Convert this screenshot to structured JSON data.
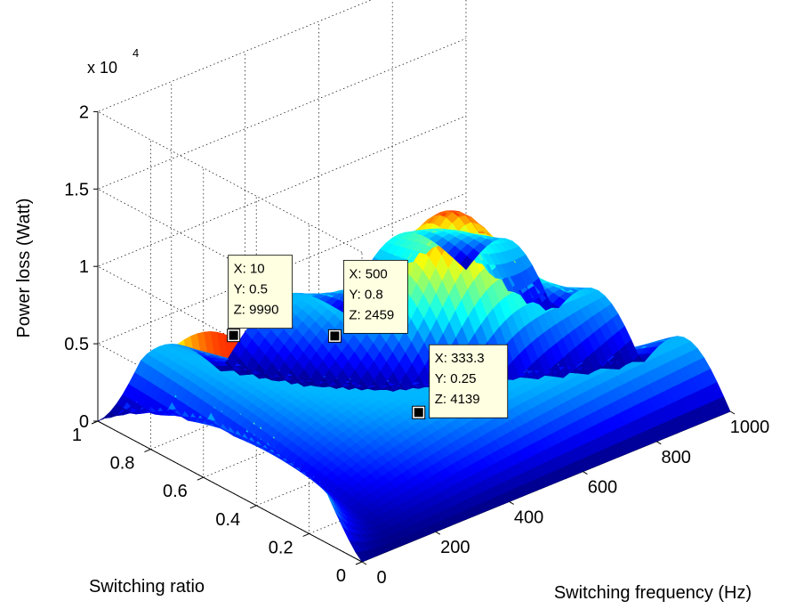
{
  "chart_data": {
    "type": "surface",
    "xlabel": "Switching frequency (Hz)",
    "ylabel": "Switching ratio",
    "zlabel": "Power loss (Watt)",
    "z_multiplier": "x 10",
    "z_multiplier_exp": "4",
    "xlim": [
      0,
      1000
    ],
    "ylim": [
      0,
      1
    ],
    "zlim": [
      0,
      20000
    ],
    "x_ticks": [
      0,
      200,
      400,
      600,
      800,
      1000
    ],
    "y_ticks": [
      0,
      0.2,
      0.4,
      0.6,
      0.8,
      1
    ],
    "z_ticks": [
      0,
      5000,
      10000,
      15000,
      20000
    ],
    "x_tick_labels": [
      "0",
      "200",
      "400",
      "600",
      "800",
      "1000"
    ],
    "y_tick_labels": [
      "0",
      "0.2",
      "0.4",
      "0.6",
      "0.8",
      "1"
    ],
    "z_tick_labels": [
      "0",
      "0.5",
      "1",
      "1.5",
      "2"
    ],
    "grid": true,
    "colormap": "jet",
    "data_tips": [
      {
        "x_label": "X: 10",
        "y_label": "Y: 0.5",
        "z_label": "Z: 9990",
        "x": 10,
        "y": 0.5,
        "z": 9990
      },
      {
        "x_label": "X: 500",
        "y_label": "Y: 0.8",
        "z_label": "Z: 2459",
        "x": 500,
        "y": 0.8,
        "z": 2459
      },
      {
        "x_label": "X: 333.3",
        "y_label": "Y: 0.25",
        "z_label": "Z: 4139",
        "x": 333.3,
        "y": 0.25,
        "z": 4139
      }
    ]
  }
}
